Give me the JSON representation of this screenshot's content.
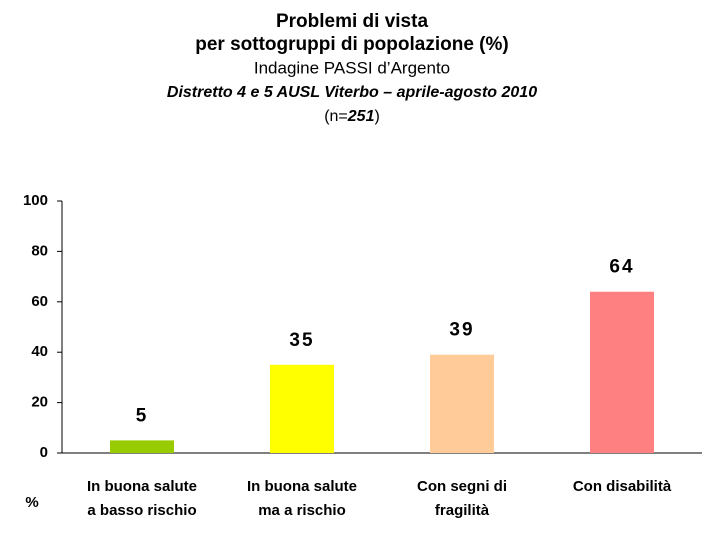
{
  "chart_data": {
    "type": "bar",
    "title": [
      "Problemi di vista",
      "per sottogruppi di popolazione (%)"
    ],
    "subtitle": "Indagine PASSI d’Argento",
    "subtitle2": "Distretto 4 e 5 AUSL Viterbo – aprile-agosto 2010",
    "note": [
      "(n=",
      "251",
      ")"
    ],
    "y_axis_label": "%",
    "categories": [
      "In buona salute a basso rischio",
      "In buona salute ma a rischio",
      "Con segni di fragilità",
      "Con disabilità"
    ],
    "values": [
      5,
      35,
      39,
      64
    ],
    "colors": [
      "#99cc00",
      "#ffff00",
      "#ffcc99",
      "#ff8080"
    ],
    "ylim": [
      0,
      100
    ],
    "yticks": [
      0,
      20,
      40,
      60,
      80,
      100
    ],
    "grid": false
  }
}
